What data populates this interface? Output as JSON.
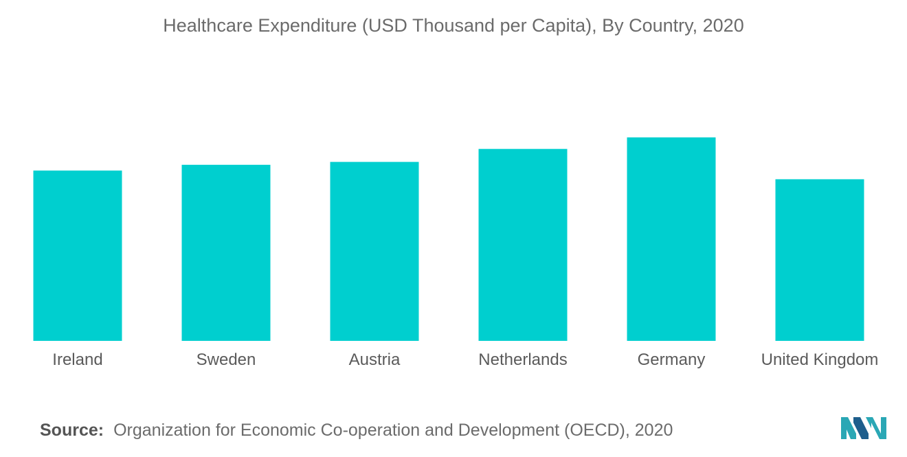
{
  "chart_data": {
    "type": "bar",
    "title": "Healthcare Expenditure (USD Thousand per Capita), By Country, 2020",
    "categories": [
      "Ireland",
      "Sweden",
      "Austria",
      "Netherlands",
      "Germany",
      "United Kingdom"
    ],
    "values": [
      5.9,
      6.1,
      6.2,
      6.65,
      7.05,
      5.6
    ],
    "xlabel": "",
    "ylabel": "",
    "ylim": [
      0,
      10
    ],
    "grid": false,
    "bar_color": "#00CFCF"
  },
  "source": {
    "label": "Source:",
    "text": "Organization for Economic Co-operation and Development (OECD), 2020"
  },
  "logo": {
    "icon": "mordor-intelligence-logo-icon",
    "colors": [
      "#2AA7B5",
      "#1E5E8C"
    ]
  }
}
